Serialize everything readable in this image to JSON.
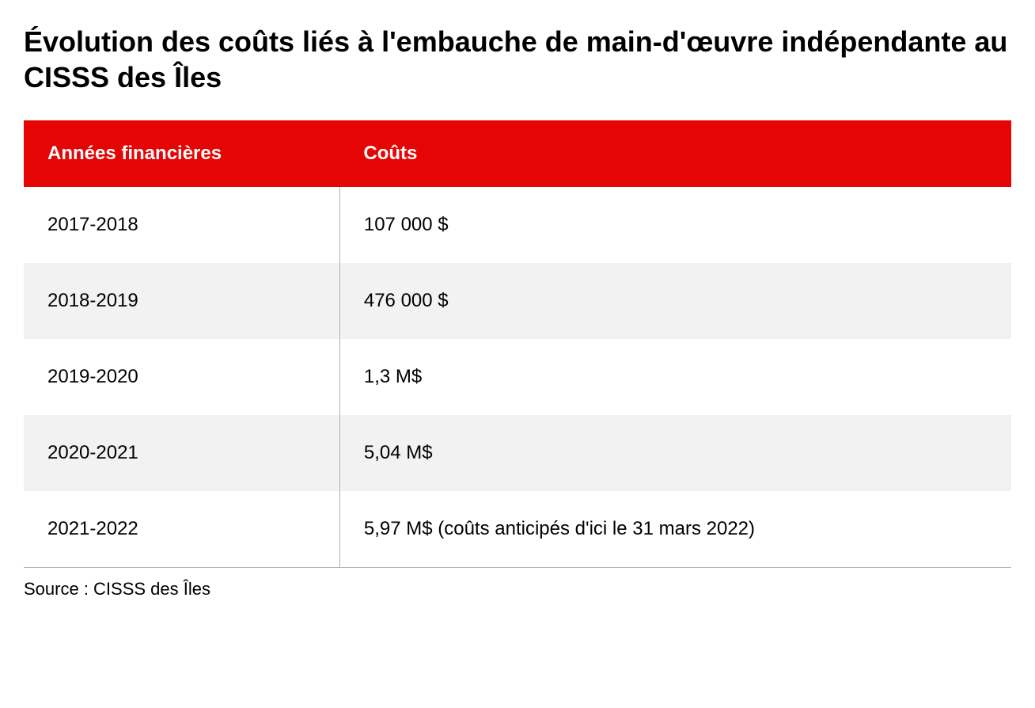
{
  "title": "Évolution des coûts liés à l'embauche de main-d'œuvre indépendante au CISSS des Îles",
  "table": {
    "type": "table",
    "header_bg": "#e60505",
    "header_fg": "#ffffff",
    "row_bg_odd": "#ffffff",
    "row_bg_even": "#f2f2f2",
    "divider_color": "#b0b0b0",
    "title_fontsize": 36,
    "header_fontsize": 24,
    "cell_fontsize": 24,
    "columns": [
      {
        "label": "Années financières",
        "width_pct": 32
      },
      {
        "label": "Coûts",
        "width_pct": 68
      }
    ],
    "rows": [
      [
        "2017-2018",
        "107 000 $"
      ],
      [
        "2018-2019",
        "476 000 $"
      ],
      [
        "2019-2020",
        "1,3 M$"
      ],
      [
        "2020-2021",
        "5,04 M$"
      ],
      [
        "2021-2022",
        "5,97 M$ (coûts anticipés d'ici le 31 mars 2022)"
      ]
    ]
  },
  "source": "Source : CISSS des Îles"
}
